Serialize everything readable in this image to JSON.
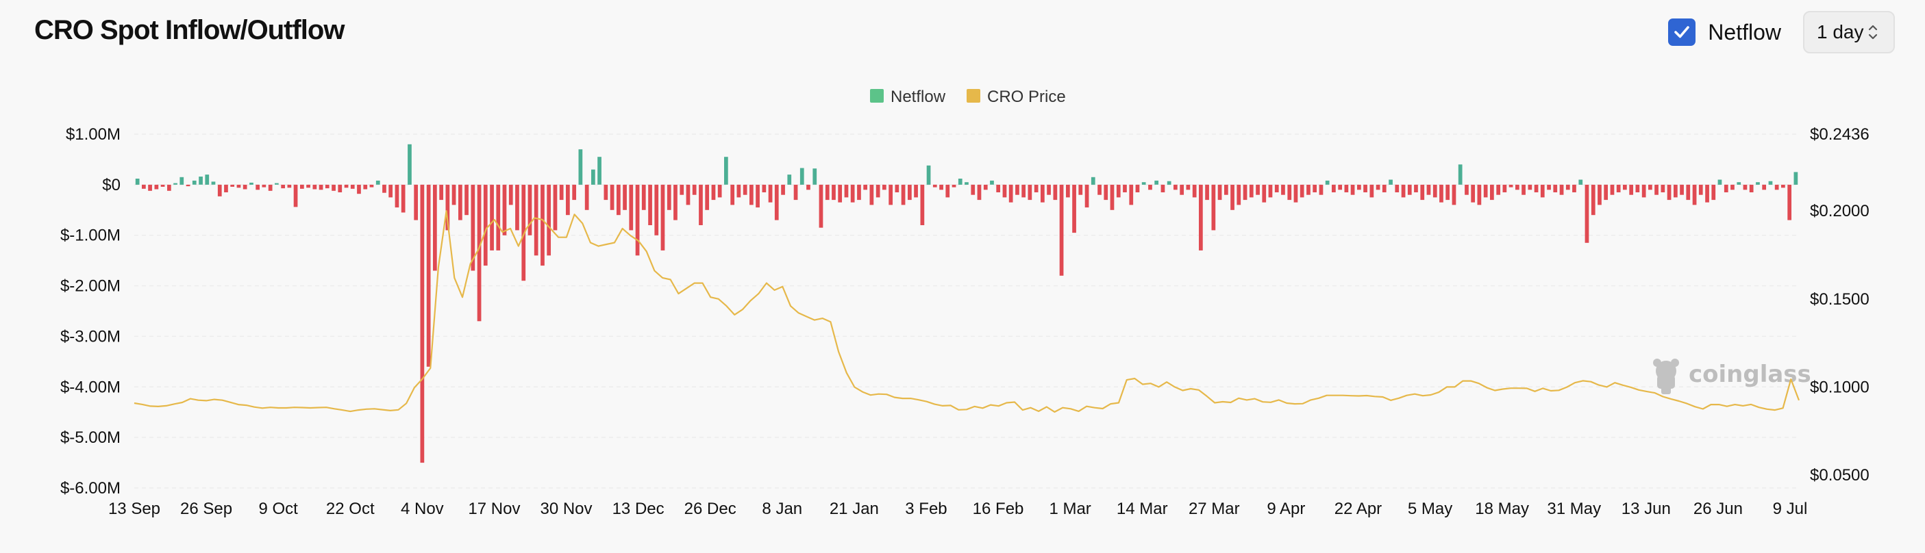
{
  "title": "CRO Spot Inflow/Outflow",
  "controls": {
    "netflow_toggle_label": "Netflow",
    "netflow_checked": true,
    "interval_value": "1 day"
  },
  "watermark": "coinglass",
  "colors": {
    "inflow": "#4caf94",
    "outflow": "#e04a52",
    "price": "#e6b84a",
    "legend_netflow": "#5cc389",
    "accent": "#2f65d3"
  },
  "chart_data": {
    "type": "bar",
    "legend": [
      "Netflow",
      "CRO Price"
    ],
    "legend_position": "top-center",
    "grid": true,
    "x_labels": [
      "13 Sep",
      "26 Sep",
      "9 Oct",
      "22 Oct",
      "4 Nov",
      "17 Nov",
      "30 Nov",
      "13 Dec",
      "26 Dec",
      "8 Jan",
      "21 Jan",
      "3 Feb",
      "16 Feb",
      "1 Mar",
      "14 Mar",
      "27 Mar",
      "9 Apr",
      "22 Apr",
      "5 May",
      "18 May",
      "31 May",
      "13 Jun",
      "26 Jun",
      "9 Jul"
    ],
    "y_left": {
      "labels": [
        "$1.00M",
        "$0",
        "$-1.00M",
        "$-2.00M",
        "$-3.00M",
        "$-4.00M",
        "$-5.00M",
        "$-6.00M"
      ],
      "range": [
        -6000000,
        1000000
      ]
    },
    "y_right": {
      "labels": [
        "$0.2436",
        "$0.2000",
        "$0.1500",
        "$0.1000",
        "$0.0500"
      ],
      "range": [
        0.05,
        0.2436
      ]
    },
    "series": [
      {
        "name": "Netflow",
        "type": "bar",
        "x_range": [
          "13 Sep",
          "9 Jul"
        ],
        "values": [
          120000,
          -80000,
          -120000,
          -90000,
          -40000,
          -120000,
          30000,
          150000,
          -30000,
          80000,
          160000,
          200000,
          60000,
          -230000,
          -150000,
          -40000,
          -60000,
          -90000,
          40000,
          -100000,
          -50000,
          -120000,
          30000,
          -70000,
          -60000,
          -440000,
          -80000,
          -60000,
          -90000,
          -100000,
          -70000,
          -120000,
          -150000,
          -60000,
          -80000,
          -180000,
          -90000,
          -50000,
          80000,
          -160000,
          -250000,
          -450000,
          -550000,
          800000,
          -700000,
          -5500000,
          -3600000,
          -1700000,
          -300000,
          -900000,
          -400000,
          -700000,
          -600000,
          -1700000,
          -2700000,
          -1600000,
          -1300000,
          -1300000,
          -1000000,
          -400000,
          -900000,
          -1900000,
          -1000000,
          -1400000,
          -1600000,
          -1400000,
          -900000,
          -300000,
          -600000,
          -300000,
          700000,
          -500000,
          300000,
          550000,
          -300000,
          -500000,
          -600000,
          -500000,
          -900000,
          -1400000,
          -500000,
          -800000,
          -1000000,
          -1300000,
          -500000,
          -700000,
          -200000,
          -400000,
          -200000,
          -800000,
          -500000,
          -300000,
          -250000,
          550000,
          -400000,
          -250000,
          -200000,
          -400000,
          -450000,
          -150000,
          -350000,
          -700000,
          -200000,
          200000,
          -300000,
          330000,
          -100000,
          320000,
          -850000,
          -300000,
          -300000,
          -350000,
          -250000,
          -350000,
          -300000,
          -100000,
          -400000,
          -250000,
          -100000,
          -400000,
          -150000,
          -400000,
          -300000,
          -250000,
          -800000,
          380000,
          -50000,
          -100000,
          -250000,
          -50000,
          120000,
          50000,
          -200000,
          -300000,
          -100000,
          80000,
          -150000,
          -250000,
          -350000,
          -200000,
          -250000,
          -300000,
          -150000,
          -350000,
          -200000,
          -300000,
          -1800000,
          -250000,
          -950000,
          -200000,
          -450000,
          150000,
          -200000,
          -300000,
          -500000,
          -250000,
          -150000,
          -400000,
          -150000,
          50000,
          -100000,
          80000,
          -150000,
          70000,
          -100000,
          -200000,
          -100000,
          -250000,
          -1300000,
          -300000,
          -900000,
          -300000,
          -200000,
          -500000,
          -400000,
          -300000,
          -250000,
          -200000,
          -350000,
          -250000,
          -150000,
          -200000,
          -300000,
          -350000,
          -250000,
          -200000,
          -150000,
          -200000,
          80000,
          -150000,
          -100000,
          -150000,
          -200000,
          -100000,
          -150000,
          -250000,
          -100000,
          -150000,
          100000,
          -150000,
          -250000,
          -200000,
          -150000,
          -300000,
          -200000,
          -250000,
          -350000,
          -300000,
          -400000,
          400000,
          -200000,
          -350000,
          -400000,
          -250000,
          -300000,
          -200000,
          -150000,
          -50000,
          -100000,
          -200000,
          -100000,
          -150000,
          -250000,
          -100000,
          -150000,
          -200000,
          -100000,
          -150000,
          100000,
          -1150000,
          -600000,
          -400000,
          -300000,
          -200000,
          -150000,
          -100000,
          -200000,
          -150000,
          -250000,
          -100000,
          -200000,
          -150000,
          -300000,
          -250000,
          -200000,
          -300000,
          -400000,
          -200000,
          -350000,
          -300000,
          100000,
          -150000,
          -100000,
          50000,
          -100000,
          -150000,
          50000,
          -100000,
          70000,
          -100000,
          -60000,
          -700000,
          250000
        ]
      },
      {
        "name": "CRO Price",
        "type": "line",
        "values": [
          0.0908,
          0.0901,
          0.0891,
          0.0889,
          0.0893,
          0.0903,
          0.0912,
          0.0933,
          0.0925,
          0.0922,
          0.0929,
          0.0925,
          0.0913,
          0.09,
          0.0896,
          0.0886,
          0.088,
          0.0884,
          0.0881,
          0.0881,
          0.0884,
          0.0883,
          0.0881,
          0.0883,
          0.0884,
          0.0876,
          0.0869,
          0.0861,
          0.0869,
          0.0874,
          0.0876,
          0.0871,
          0.0866,
          0.087,
          0.0907,
          0.0996,
          0.1046,
          0.1107,
          0.168,
          0.2,
          0.162,
          0.151,
          0.17,
          0.178,
          0.19,
          0.195,
          0.188,
          0.19,
          0.18,
          0.19,
          0.196,
          0.195,
          0.19,
          0.185,
          0.185,
          0.198,
          0.193,
          0.182,
          0.18,
          0.181,
          0.182,
          0.19,
          0.186,
          0.183,
          0.177,
          0.166,
          0.162,
          0.161,
          0.153,
          0.156,
          0.159,
          0.159,
          0.151,
          0.15,
          0.146,
          0.141,
          0.144,
          0.149,
          0.153,
          0.159,
          0.155,
          0.157,
          0.146,
          0.142,
          0.14,
          0.138,
          0.139,
          0.137,
          0.12,
          0.108,
          0.0999,
          0.0972,
          0.0954,
          0.096,
          0.0958,
          0.0941,
          0.0935,
          0.0935,
          0.0927,
          0.0917,
          0.0902,
          0.0893,
          0.0895,
          0.087,
          0.0872,
          0.0889,
          0.088,
          0.0898,
          0.0892,
          0.091,
          0.0914,
          0.0869,
          0.0882,
          0.0862,
          0.0887,
          0.0858,
          0.0882,
          0.0876,
          0.0862,
          0.089,
          0.0882,
          0.0877,
          0.0904,
          0.091,
          0.104,
          0.1048,
          0.1015,
          0.102,
          0.1,
          0.1028,
          0.1,
          0.098,
          0.099,
          0.0983,
          0.0948,
          0.091,
          0.0916,
          0.0912,
          0.0936,
          0.0926,
          0.0933,
          0.0915,
          0.0913,
          0.0926,
          0.0908,
          0.0904,
          0.0905,
          0.0926,
          0.0936,
          0.0952,
          0.0952,
          0.0952,
          0.095,
          0.0949,
          0.0951,
          0.0946,
          0.0943,
          0.0924,
          0.0936,
          0.0952,
          0.096,
          0.095,
          0.0955,
          0.097,
          0.1,
          0.1,
          0.1034,
          0.1034,
          0.102,
          0.0996,
          0.098,
          0.0988,
          0.0993,
          0.0993,
          0.0992,
          0.0975,
          0.0992,
          0.0978,
          0.0981,
          0.0999,
          0.1024,
          0.1035,
          0.103,
          0.1011,
          0.1,
          0.1024,
          0.101,
          0.0998,
          0.0983,
          0.0974,
          0.0966,
          0.0945,
          0.0932,
          0.092,
          0.0906,
          0.0888,
          0.0875,
          0.09,
          0.09,
          0.089,
          0.09,
          0.0893,
          0.0901,
          0.0884,
          0.0874,
          0.0869,
          0.088,
          0.1044,
          0.0924
        ]
      }
    ]
  }
}
